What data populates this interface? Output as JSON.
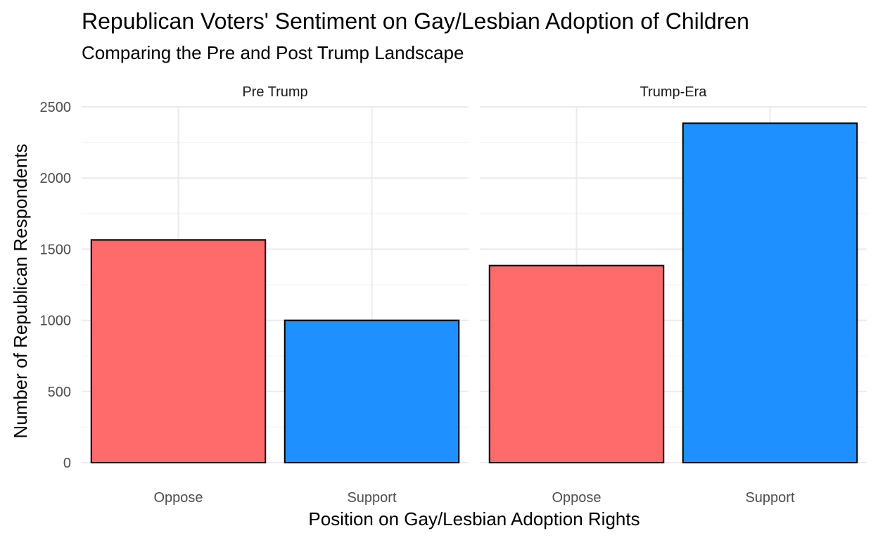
{
  "chart_data": {
    "type": "bar",
    "title": "Republican Voters' Sentiment on Gay/Lesbian Adoption of Children",
    "subtitle": "Comparing the Pre and Post Trump Landscape",
    "xlabel": "Position on Gay/Lesbian Adoption Rights",
    "ylabel": "Number of Republican Respondents",
    "ylim": [
      0,
      2500
    ],
    "yticks": [
      "0",
      "500",
      "1000",
      "1500",
      "2000",
      "2500"
    ],
    "grid": true,
    "legend": "none",
    "categories": [
      "Oppose",
      "Support"
    ],
    "colors": {
      "Oppose": "#ff6b6b",
      "Support": "#1e90ff"
    },
    "panels": [
      {
        "name": "Pre Trump",
        "values": [
          1565,
          1000
        ]
      },
      {
        "name": "Trump-Era",
        "values": [
          1385,
          2385
        ]
      }
    ]
  }
}
